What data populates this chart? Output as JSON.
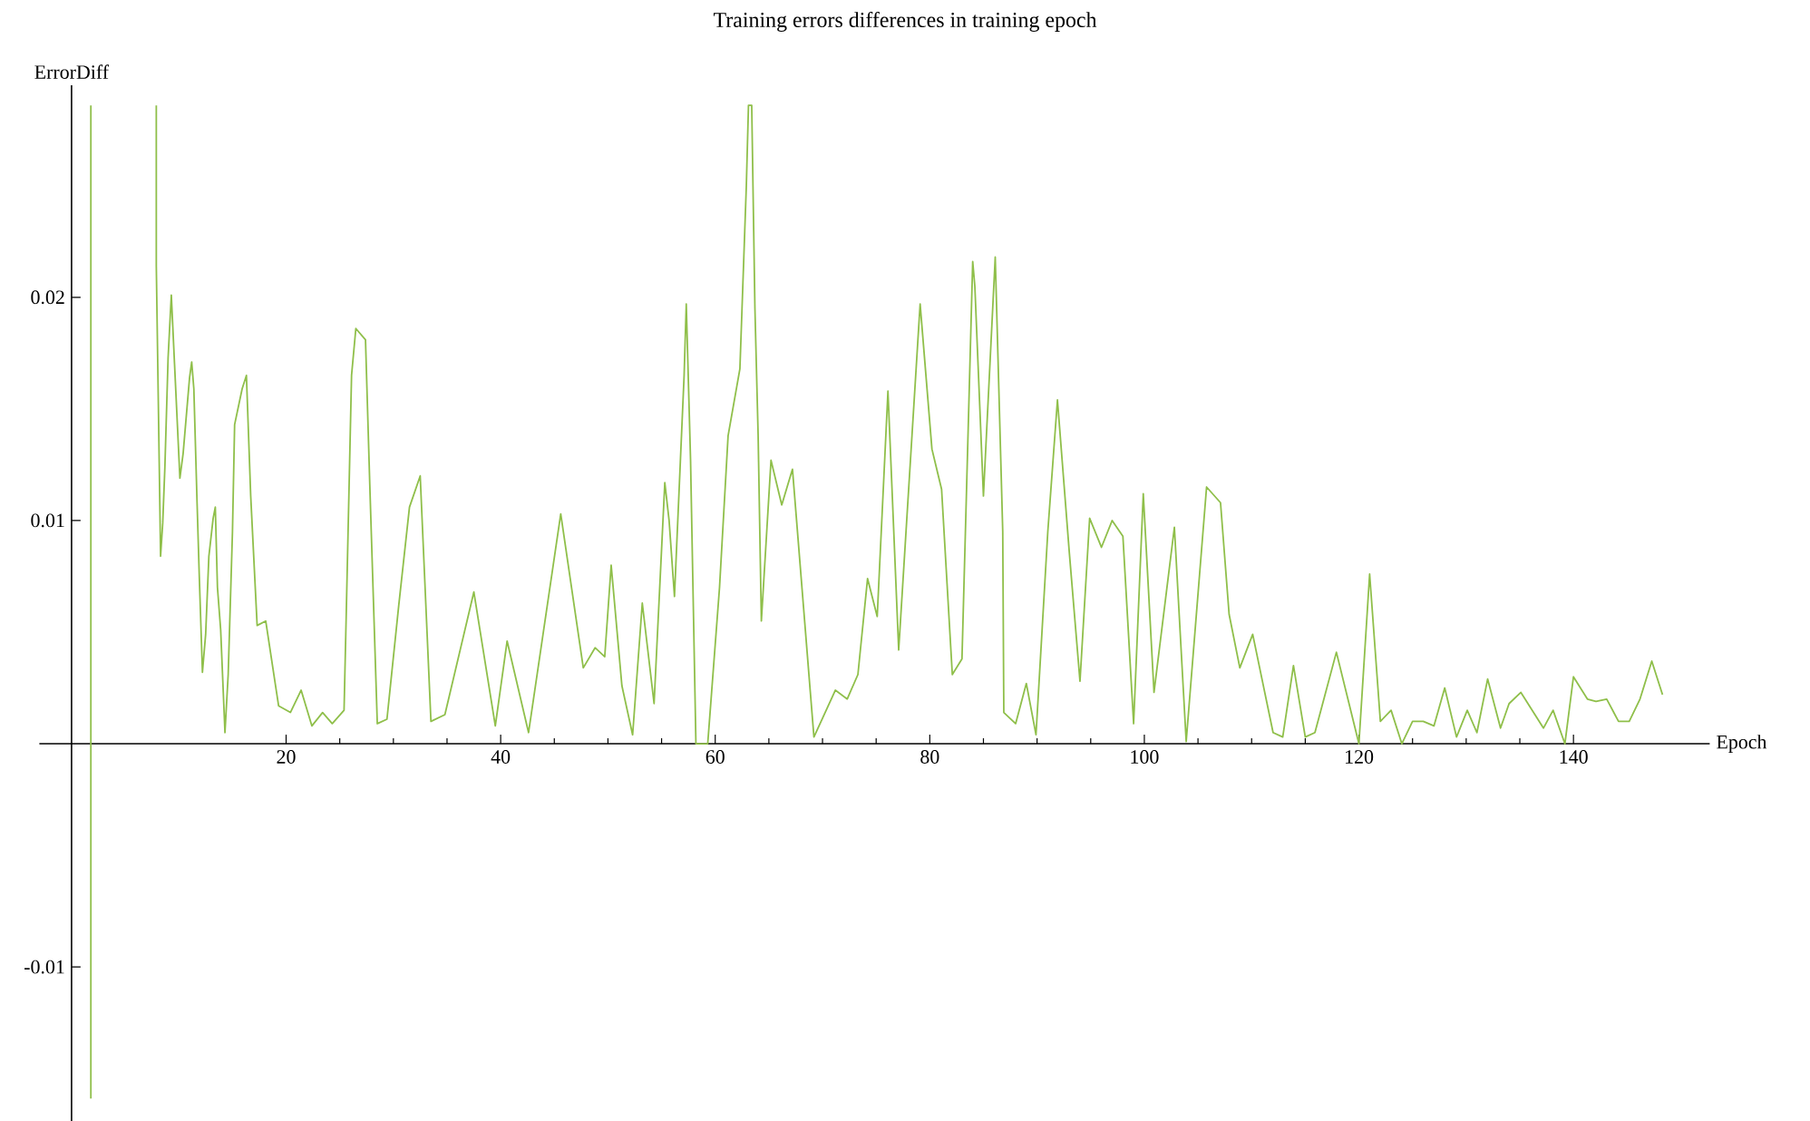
{
  "chart_data": {
    "type": "line",
    "title": "Training errors differences in training epoch",
    "xlabel": "Epoch",
    "ylabel": "ErrorDiff",
    "xlim": [
      -3,
      152.7
    ],
    "ylim": [
      -0.0169,
      0.0295
    ],
    "xticks": [
      20,
      40,
      60,
      80,
      100,
      120,
      140
    ],
    "yticks": [
      -0.01,
      0.01,
      0.02
    ],
    "grid": false,
    "marker": "none",
    "line_style": "solid",
    "series": [
      {
        "color": "#8fbf4a",
        "x": [
          1.8,
          1.8,
          4.8,
          7.9,
          7.9,
          8.3,
          8.5,
          8.7,
          9.0,
          9.3,
          9.6,
          10.1,
          10.4,
          11.0,
          11.2,
          11.4,
          11.7,
          11.9,
          12.2,
          12.5,
          12.8,
          13.2,
          13.4,
          13.6,
          13.9,
          14.3,
          14.6,
          15.0,
          15.2,
          15.9,
          16.3,
          16.7,
          17.3,
          18.1,
          19.3,
          20.4,
          21.4,
          22.4,
          23.4,
          24.3,
          25.4,
          25.6,
          26.1,
          26.5,
          27.4,
          27.8,
          28.5,
          29.4,
          30.5,
          31.5,
          32.5,
          33.5,
          34.8,
          37.5,
          39.5,
          40.6,
          42.6,
          45.6,
          47.7,
          48.8,
          49.7,
          50.3,
          51.3,
          52.3,
          53.2,
          54.3,
          55.3,
          55.7,
          56.2,
          57.1,
          57.3,
          57.7,
          58.2,
          59.3,
          60.4,
          61.2,
          62.3,
          62.9,
          63.1,
          63.4,
          63.7,
          64.0,
          64.3,
          65.2,
          66.2,
          67.2,
          69.2,
          71.2,
          72.3,
          73.3,
          74.2,
          75.1,
          76.1,
          77.1,
          79.1,
          80.2,
          81.1,
          82.1,
          83.0,
          84.0,
          84.2,
          85.0,
          86.1,
          86.8,
          86.9,
          88.0,
          89.0,
          89.9,
          91.0,
          91.9,
          93.0,
          94.0,
          94.9,
          96.0,
          97.0,
          98.0,
          99.0,
          99.9,
          100.9,
          102.8,
          103.9,
          105.8,
          107.1,
          107.9,
          108.9,
          110.1,
          112.0,
          112.9,
          113.9,
          115.0,
          115.9,
          117.9,
          120.0,
          121.0,
          122.0,
          123.0,
          124.0,
          125.0,
          126.0,
          127.0,
          128.0,
          129.1,
          130.1,
          131.0,
          132.0,
          133.2,
          134.0,
          135.1,
          137.2,
          138.1,
          139.2,
          140.0,
          141.3,
          142.1,
          143.1,
          144.2,
          145.2,
          146.2,
          147.3,
          148.3
        ],
        "values": [
          0.0286,
          -0.0159,
          null,
          0.0286,
          0.0214,
          0.0084,
          0.0099,
          0.0124,
          0.0173,
          0.0201,
          0.017,
          0.0119,
          0.013,
          0.0164,
          0.0171,
          0.0159,
          0.0108,
          0.0076,
          0.0032,
          0.0049,
          0.0084,
          0.0101,
          0.0106,
          0.007,
          0.0051,
          0.0005,
          0.0031,
          0.0095,
          0.0143,
          0.0159,
          0.0165,
          0.0111,
          0.0053,
          0.0055,
          0.0017,
          0.0014,
          0.0024,
          0.0008,
          0.0014,
          0.0009,
          0.0015,
          0.0057,
          0.0165,
          0.0186,
          0.0181,
          0.0116,
          0.0009,
          0.0011,
          0.0062,
          0.0106,
          0.012,
          0.001,
          0.0013,
          0.0068,
          0.0008,
          0.0046,
          0.0005,
          0.0103,
          0.0034,
          0.0043,
          0.0039,
          0.008,
          0.0026,
          0.0004,
          0.0063,
          0.0018,
          0.0117,
          0.01,
          0.0066,
          0.0165,
          0.0197,
          0.0127,
          0,
          0,
          0.007,
          0.0138,
          0.0168,
          0.025,
          0.0286,
          0.0286,
          0.0195,
          0.0138,
          0.0055,
          0.0127,
          0.0107,
          0.0123,
          0.0003,
          0.0024,
          0.002,
          0.0031,
          0.0074,
          0.0057,
          0.0158,
          0.0042,
          0.0197,
          0.0132,
          0.0114,
          0.0031,
          0.0038,
          0.0216,
          0.0205,
          0.0111,
          0.0218,
          0.0095,
          0.0014,
          0.0009,
          0.0027,
          0.0004,
          0.0095,
          0.0154,
          0.0086,
          0.0028,
          0.0101,
          0.0088,
          0.01,
          0.0093,
          0.0009,
          0.0112,
          0.0023,
          0.0097,
          0.0001,
          0.0115,
          0.0108,
          0.0058,
          0.0034,
          0.0049,
          0.0005,
          0.0003,
          0.0035,
          0.0003,
          0.0005,
          0.0041,
          0,
          0.0076,
          0.001,
          0.0015,
          0,
          0.001,
          0.001,
          0.0008,
          0.0025,
          0.0003,
          0.0015,
          0.0005,
          0.0029,
          0.0007,
          0.0018,
          0.0023,
          0.0007,
          0.0015,
          0,
          0.003,
          0.002,
          0.0019,
          0.002,
          0.001,
          0.001,
          0.002,
          0.0037,
          0.0022
        ]
      }
    ]
  }
}
